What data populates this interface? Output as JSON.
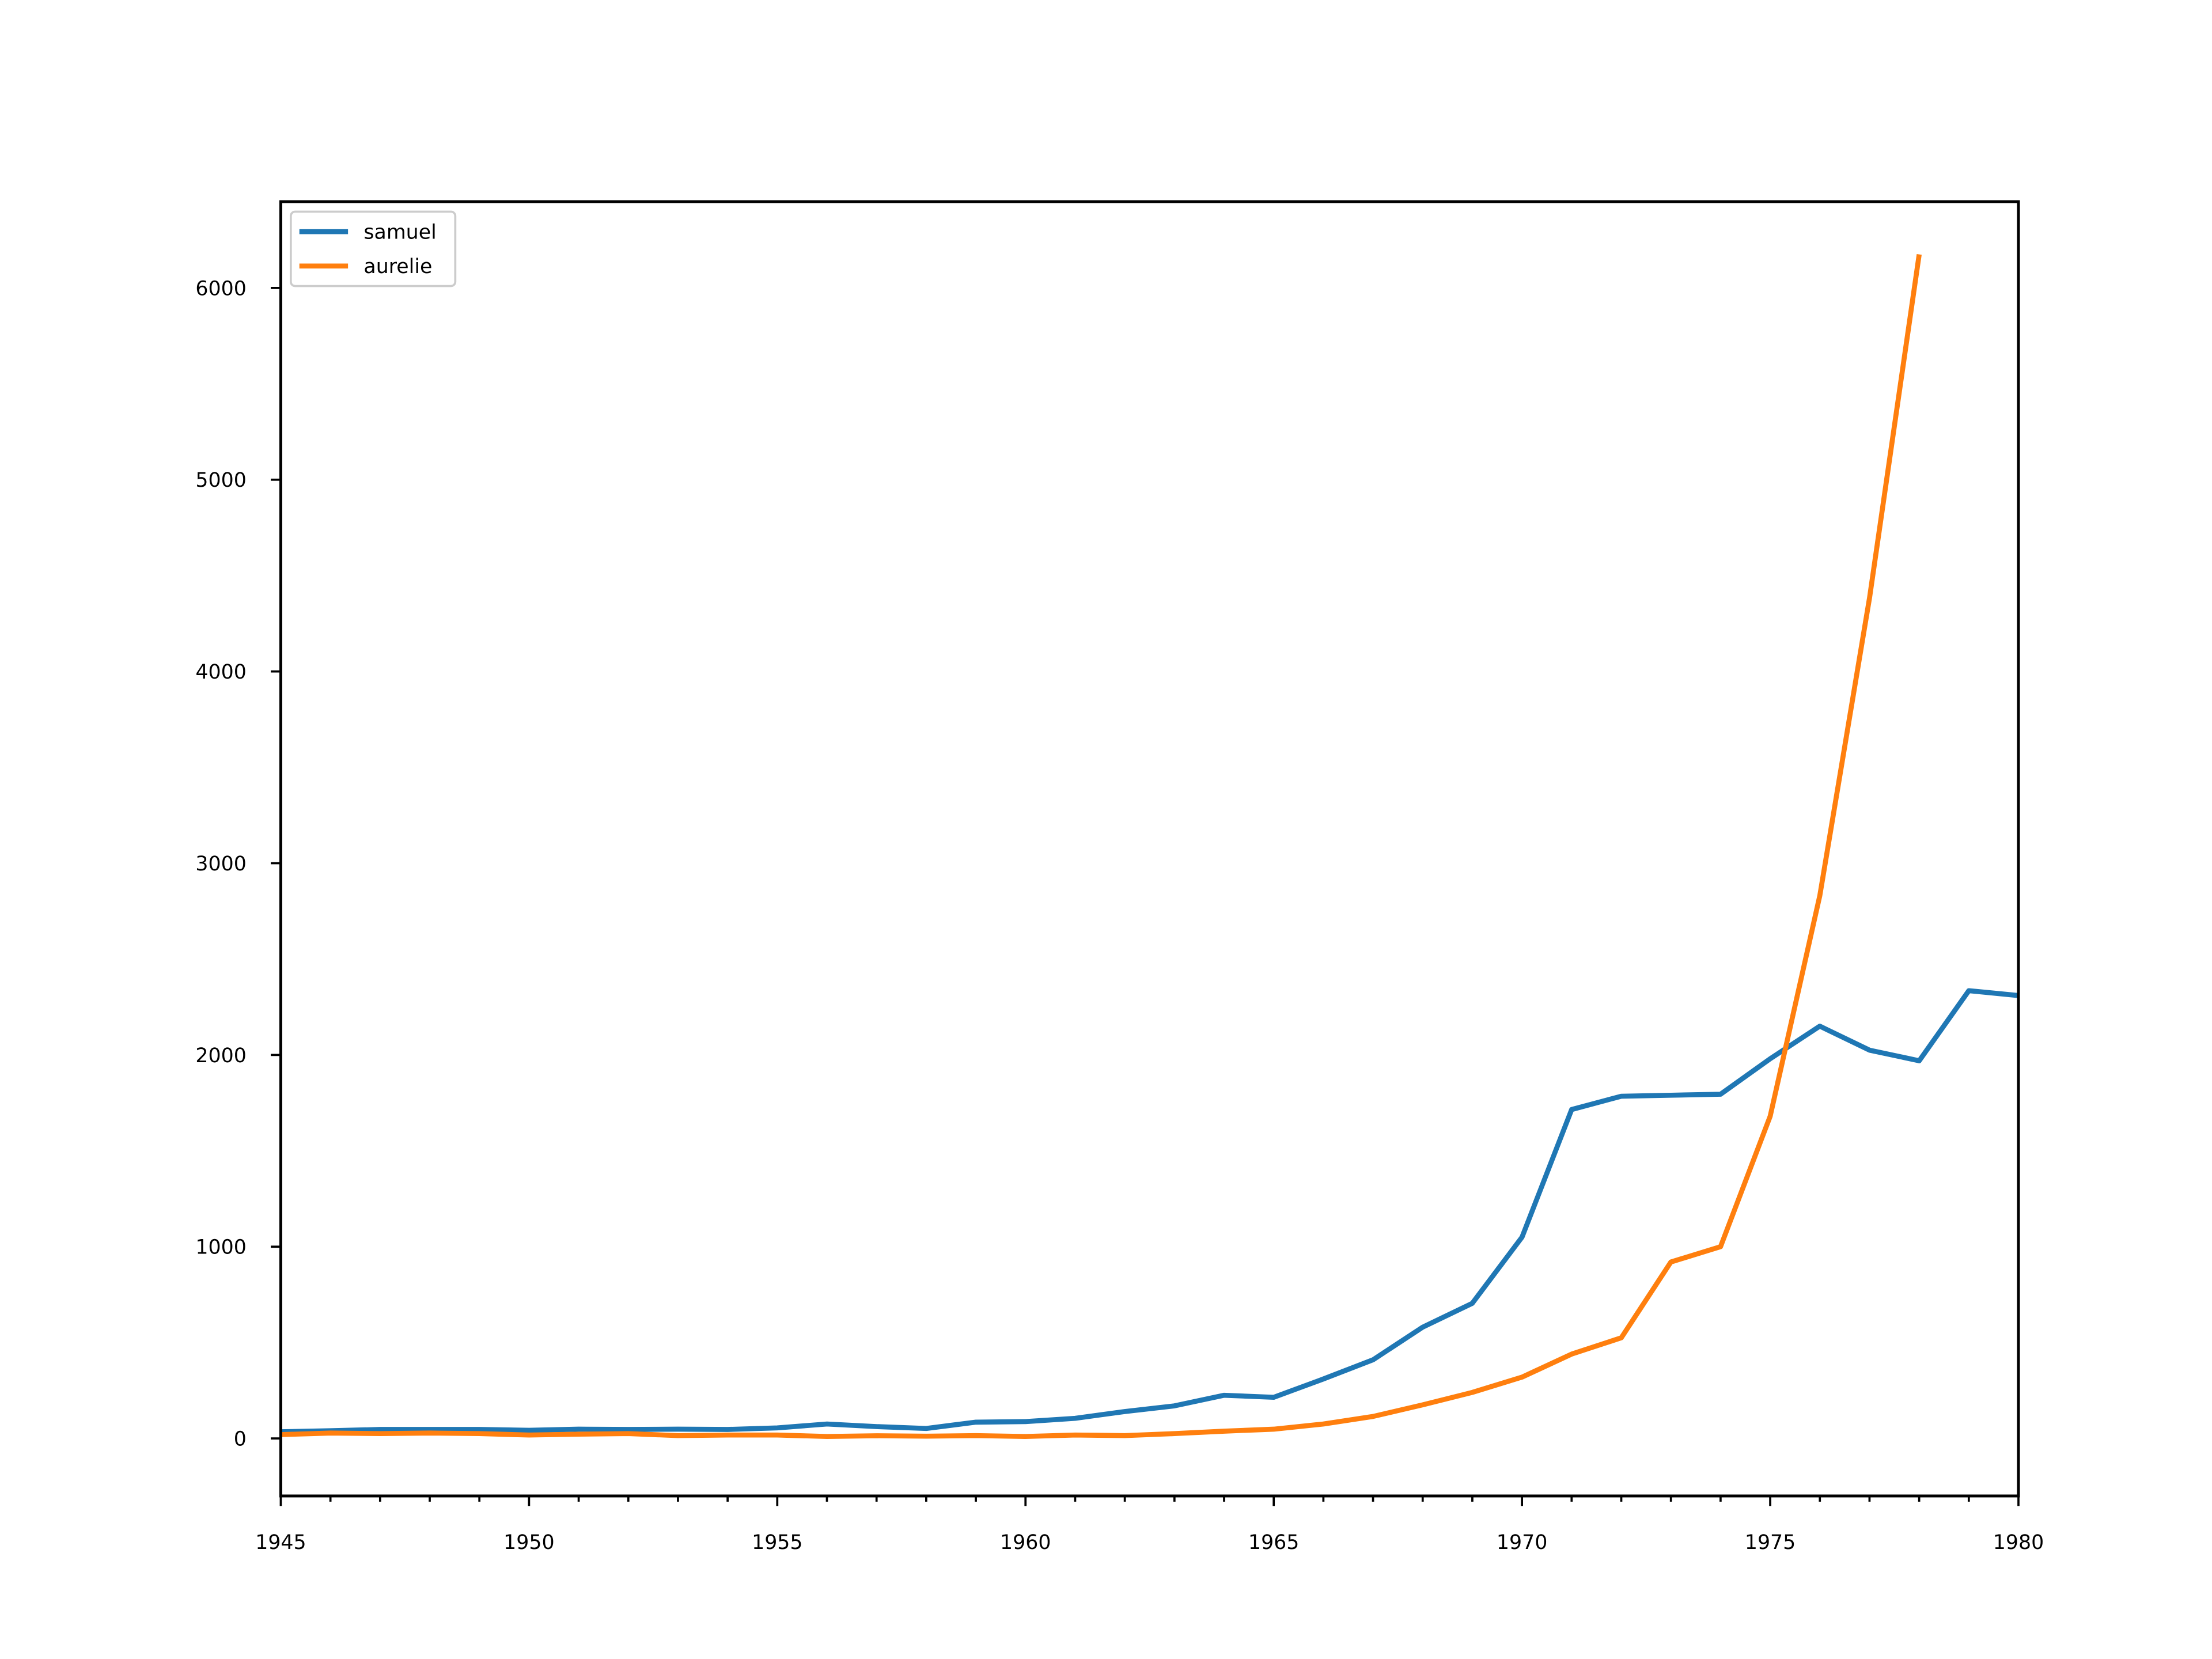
{
  "chart_data": {
    "type": "line",
    "title": "",
    "xlabel": "",
    "ylabel": "",
    "xlim": [
      1945,
      1980
    ],
    "ylim": [
      -300,
      6450
    ],
    "xticks": [
      1945,
      1950,
      1955,
      1960,
      1965,
      1970,
      1975,
      1980
    ],
    "yticks": [
      0,
      1000,
      2000,
      3000,
      4000,
      5000,
      6000
    ],
    "grid": false,
    "legend_position": "top-left",
    "x": [
      1945,
      1946,
      1947,
      1948,
      1949,
      1950,
      1951,
      1952,
      1953,
      1954,
      1955,
      1956,
      1957,
      1958,
      1959,
      1960,
      1961,
      1962,
      1963,
      1964,
      1965,
      1966,
      1967,
      1968,
      1969,
      1970,
      1971,
      1972,
      1973,
      1974,
      1975,
      1976,
      1977,
      1978,
      1979,
      1980
    ],
    "series": [
      {
        "name": "samuel",
        "color": "#1f77b4",
        "values": [
          35,
          40,
          47,
          47,
          47,
          42,
          48,
          47,
          48,
          47,
          55,
          75,
          62,
          52,
          85,
          88,
          105,
          140,
          170,
          225,
          215,
          310,
          410,
          580,
          705,
          1050,
          1715,
          1785,
          1790,
          1795,
          1980,
          2150,
          2025,
          1970,
          2335,
          2310
        ]
      },
      {
        "name": "aurelie",
        "color": "#ff7f0e",
        "values": [
          20,
          28,
          25,
          28,
          25,
          18,
          22,
          25,
          15,
          18,
          18,
          10,
          14,
          12,
          15,
          10,
          18,
          15,
          25,
          38,
          48,
          75,
          115,
          175,
          240,
          320,
          440,
          525,
          920,
          1000,
          1680,
          2830,
          4385,
          6175,
          null,
          null
        ]
      }
    ]
  }
}
